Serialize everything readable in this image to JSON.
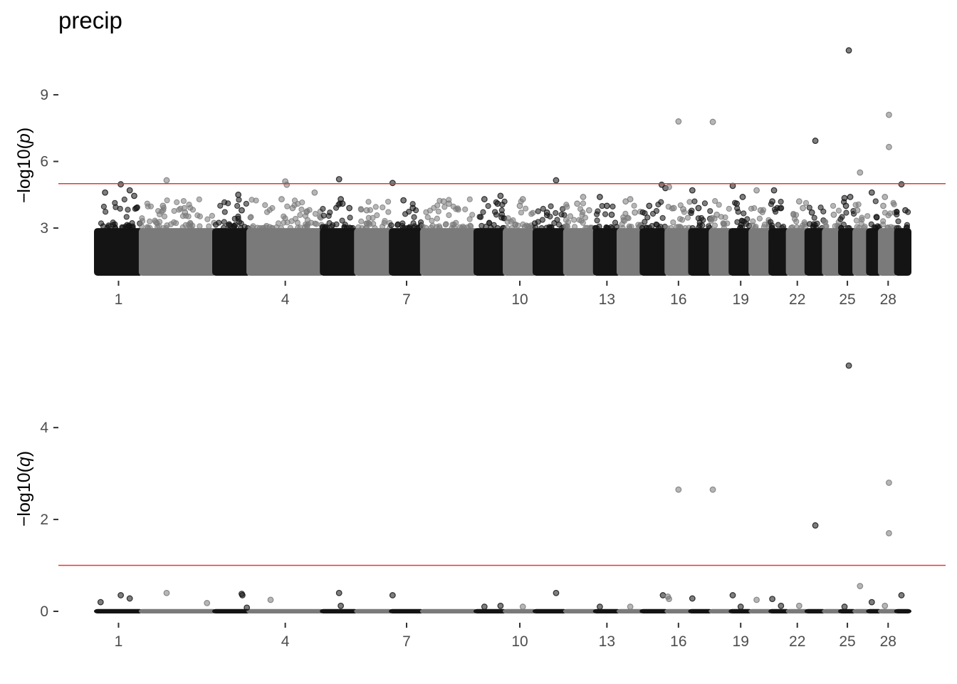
{
  "chart_data": [
    {
      "type": "scatter",
      "title": "precip",
      "ylabel_prefix": "−log10(",
      "ylabel_var": "p",
      "ylabel_suffix": ")",
      "ylim": [
        0.95,
        11.6
      ],
      "yticks": [
        3,
        6,
        9
      ],
      "threshold": 5,
      "x_ticks": [
        "1",
        "4",
        "7",
        "10",
        "13",
        "16",
        "19",
        "22",
        "25",
        "28"
      ],
      "n_chromosomes": 29,
      "colors": {
        "dark": "#141414",
        "light": "#7a7a7a",
        "threshold": "#e53935"
      },
      "outliers": [
        {
          "chrom": 1,
          "pos": 0.2,
          "y": 4.6
        },
        {
          "chrom": 1,
          "pos": 0.55,
          "y": 4.97
        },
        {
          "chrom": 1,
          "pos": 0.75,
          "y": 4.7
        },
        {
          "chrom": 1,
          "pos": 0.85,
          "y": 4.45
        },
        {
          "chrom": 1,
          "pos": 0.9,
          "y": 3.9
        },
        {
          "chrom": 2,
          "pos": 0.3,
          "y": 4.0
        },
        {
          "chrom": 2,
          "pos": 0.35,
          "y": 5.15
        },
        {
          "chrom": 2,
          "pos": 0.6,
          "y": 3.7
        },
        {
          "chrom": 3,
          "pos": 0.7,
          "y": 4.5
        },
        {
          "chrom": 3,
          "pos": 0.8,
          "y": 3.8
        },
        {
          "chrom": 4,
          "pos": 0.45,
          "y": 4.3
        },
        {
          "chrom": 4,
          "pos": 0.5,
          "y": 5.1
        },
        {
          "chrom": 4,
          "pos": 0.52,
          "y": 4.95
        },
        {
          "chrom": 4,
          "pos": 0.9,
          "y": 4.6
        },
        {
          "chrom": 4,
          "pos": 0.6,
          "y": 3.9
        },
        {
          "chrom": 5,
          "pos": 0.5,
          "y": 5.2
        },
        {
          "chrom": 5,
          "pos": 0.55,
          "y": 4.3
        },
        {
          "chrom": 5,
          "pos": 0.6,
          "y": 4.1
        },
        {
          "chrom": 5,
          "pos": 0.8,
          "y": 3.9
        },
        {
          "chrom": 6,
          "pos": 0.3,
          "y": 3.8
        },
        {
          "chrom": 7,
          "pos": 0.4,
          "y": 4.25
        },
        {
          "chrom": 7,
          "pos": 0.05,
          "y": 5.03
        },
        {
          "chrom": 7,
          "pos": 0.7,
          "y": 3.9
        },
        {
          "chrom": 8,
          "pos": 0.4,
          "y": 4.2
        },
        {
          "chrom": 8,
          "pos": 0.5,
          "y": 4.1
        },
        {
          "chrom": 9,
          "pos": 0.3,
          "y": 4.3
        },
        {
          "chrom": 9,
          "pos": 0.85,
          "y": 4.45
        },
        {
          "chrom": 9,
          "pos": 0.75,
          "y": 4.1
        },
        {
          "chrom": 10,
          "pos": 0.6,
          "y": 4.3
        },
        {
          "chrom": 10,
          "pos": 0.5,
          "y": 4.0
        },
        {
          "chrom": 11,
          "pos": 0.7,
          "y": 5.15
        },
        {
          "chrom": 11,
          "pos": 0.4,
          "y": 3.7
        },
        {
          "chrom": 12,
          "pos": 0.4,
          "y": 4.1
        },
        {
          "chrom": 12,
          "pos": 0.6,
          "y": 4.4
        },
        {
          "chrom": 12,
          "pos": 0.8,
          "y": 3.8
        },
        {
          "chrom": 13,
          "pos": 0.2,
          "y": 4.4
        },
        {
          "chrom": 13,
          "pos": 0.5,
          "y": 4.0
        },
        {
          "chrom": 13,
          "pos": 0.7,
          "y": 3.6
        },
        {
          "chrom": 14,
          "pos": 0.3,
          "y": 4.2
        },
        {
          "chrom": 14,
          "pos": 0.5,
          "y": 4.3
        },
        {
          "chrom": 14,
          "pos": 0.7,
          "y": 3.7
        },
        {
          "chrom": 15,
          "pos": 0.3,
          "y": 4.0
        },
        {
          "chrom": 15,
          "pos": 0.8,
          "y": 4.95
        },
        {
          "chrom": 15,
          "pos": 0.95,
          "y": 4.8
        },
        {
          "chrom": 16,
          "pos": 0.1,
          "y": 4.85
        },
        {
          "chrom": 16,
          "pos": 0.5,
          "y": 7.8
        },
        {
          "chrom": 16,
          "pos": 0.3,
          "y": 3.9
        },
        {
          "chrom": 16,
          "pos": 0.7,
          "y": 3.85
        },
        {
          "chrom": 17,
          "pos": 0.1,
          "y": 4.7
        },
        {
          "chrom": 17,
          "pos": 0.4,
          "y": 3.9
        },
        {
          "chrom": 18,
          "pos": 0.1,
          "y": 7.78
        },
        {
          "chrom": 18,
          "pos": 0.3,
          "y": 3.6
        },
        {
          "chrom": 19,
          "pos": 0.1,
          "y": 4.9
        },
        {
          "chrom": 19,
          "pos": 0.3,
          "y": 4.1
        },
        {
          "chrom": 19,
          "pos": 0.6,
          "y": 4.4
        },
        {
          "chrom": 20,
          "pos": 0.3,
          "y": 4.7
        },
        {
          "chrom": 20,
          "pos": 0.5,
          "y": 3.8
        },
        {
          "chrom": 21,
          "pos": 0.2,
          "y": 4.7
        },
        {
          "chrom": 21,
          "pos": 0.1,
          "y": 4.2
        },
        {
          "chrom": 21,
          "pos": 0.6,
          "y": 3.9
        },
        {
          "chrom": 22,
          "pos": 0.6,
          "y": 4.2
        },
        {
          "chrom": 22,
          "pos": 0.8,
          "y": 3.9
        },
        {
          "chrom": 23,
          "pos": 0.5,
          "y": 6.93
        },
        {
          "chrom": 23,
          "pos": 0.3,
          "y": 3.7
        },
        {
          "chrom": 24,
          "pos": 0.6,
          "y": 3.6
        },
        {
          "chrom": 25,
          "pos": 0.6,
          "y": 11.0
        },
        {
          "chrom": 25,
          "pos": 0.3,
          "y": 4.35
        },
        {
          "chrom": 25,
          "pos": 0.4,
          "y": 4.0
        },
        {
          "chrom": 25,
          "pos": 0.7,
          "y": 4.4
        },
        {
          "chrom": 26,
          "pos": 0.4,
          "y": 5.5
        },
        {
          "chrom": 26,
          "pos": 0.2,
          "y": 3.8
        },
        {
          "chrom": 27,
          "pos": 0.3,
          "y": 4.6
        },
        {
          "chrom": 27,
          "pos": 0.7,
          "y": 3.5
        },
        {
          "chrom": 28,
          "pos": 0.55,
          "y": 8.1
        },
        {
          "chrom": 28,
          "pos": 0.55,
          "y": 6.65
        },
        {
          "chrom": 28,
          "pos": 0.3,
          "y": 4.4
        },
        {
          "chrom": 28,
          "pos": 0.2,
          "y": 4.0
        },
        {
          "chrom": 29,
          "pos": 0.4,
          "y": 4.97
        },
        {
          "chrom": 29,
          "pos": 0.7,
          "y": 3.8
        }
      ]
    },
    {
      "type": "scatter",
      "title": "",
      "ylabel_prefix": "−log10(",
      "ylabel_var": "q",
      "ylabel_suffix": ")",
      "ylim": [
        0,
        5.6
      ],
      "yticks": [
        0,
        2,
        4
      ],
      "threshold": 1,
      "x_ticks": [
        "1",
        "4",
        "7",
        "10",
        "13",
        "16",
        "19",
        "22",
        "25",
        "28"
      ],
      "n_chromosomes": 29,
      "colors": {
        "dark": "#141414",
        "light": "#7a7a7a",
        "threshold": "#e53935"
      },
      "outliers": [
        {
          "chrom": 1,
          "pos": 0.1,
          "y": 0.2
        },
        {
          "chrom": 1,
          "pos": 0.55,
          "y": 0.35
        },
        {
          "chrom": 1,
          "pos": 0.75,
          "y": 0.28
        },
        {
          "chrom": 2,
          "pos": 0.35,
          "y": 0.4
        },
        {
          "chrom": 2,
          "pos": 0.9,
          "y": 0.18
        },
        {
          "chrom": 3,
          "pos": 0.8,
          "y": 0.38
        },
        {
          "chrom": 3,
          "pos": 0.82,
          "y": 0.35
        },
        {
          "chrom": 3,
          "pos": 0.95,
          "y": 0.08
        },
        {
          "chrom": 4,
          "pos": 0.3,
          "y": 0.25
        },
        {
          "chrom": 5,
          "pos": 0.5,
          "y": 0.4
        },
        {
          "chrom": 5,
          "pos": 0.55,
          "y": 0.12
        },
        {
          "chrom": 7,
          "pos": 0.05,
          "y": 0.35
        },
        {
          "chrom": 9,
          "pos": 0.3,
          "y": 0.1
        },
        {
          "chrom": 9,
          "pos": 0.85,
          "y": 0.12
        },
        {
          "chrom": 10,
          "pos": 0.6,
          "y": 0.1
        },
        {
          "chrom": 11,
          "pos": 0.7,
          "y": 0.4
        },
        {
          "chrom": 13,
          "pos": 0.2,
          "y": 0.1
        },
        {
          "chrom": 14,
          "pos": 0.5,
          "y": 0.1
        },
        {
          "chrom": 15,
          "pos": 0.85,
          "y": 0.35
        },
        {
          "chrom": 16,
          "pos": 0.05,
          "y": 0.32
        },
        {
          "chrom": 16,
          "pos": 0.1,
          "y": 0.27
        },
        {
          "chrom": 16,
          "pos": 0.5,
          "y": 2.65
        },
        {
          "chrom": 17,
          "pos": 0.1,
          "y": 0.28
        },
        {
          "chrom": 18,
          "pos": 0.1,
          "y": 2.65
        },
        {
          "chrom": 19,
          "pos": 0.1,
          "y": 0.35
        },
        {
          "chrom": 19,
          "pos": 0.5,
          "y": 0.1
        },
        {
          "chrom": 20,
          "pos": 0.3,
          "y": 0.25
        },
        {
          "chrom": 21,
          "pos": 0.1,
          "y": 0.27
        },
        {
          "chrom": 21,
          "pos": 0.6,
          "y": 0.12
        },
        {
          "chrom": 22,
          "pos": 0.6,
          "y": 0.12
        },
        {
          "chrom": 23,
          "pos": 0.5,
          "y": 1.87
        },
        {
          "chrom": 25,
          "pos": 0.6,
          "y": 5.35
        },
        {
          "chrom": 25,
          "pos": 0.3,
          "y": 0.1
        },
        {
          "chrom": 26,
          "pos": 0.4,
          "y": 0.55
        },
        {
          "chrom": 27,
          "pos": 0.3,
          "y": 0.2
        },
        {
          "chrom": 28,
          "pos": 0.55,
          "y": 2.8
        },
        {
          "chrom": 28,
          "pos": 0.55,
          "y": 1.7
        },
        {
          "chrom": 28,
          "pos": 0.3,
          "y": 0.12
        },
        {
          "chrom": 29,
          "pos": 0.4,
          "y": 0.35
        }
      ]
    }
  ]
}
